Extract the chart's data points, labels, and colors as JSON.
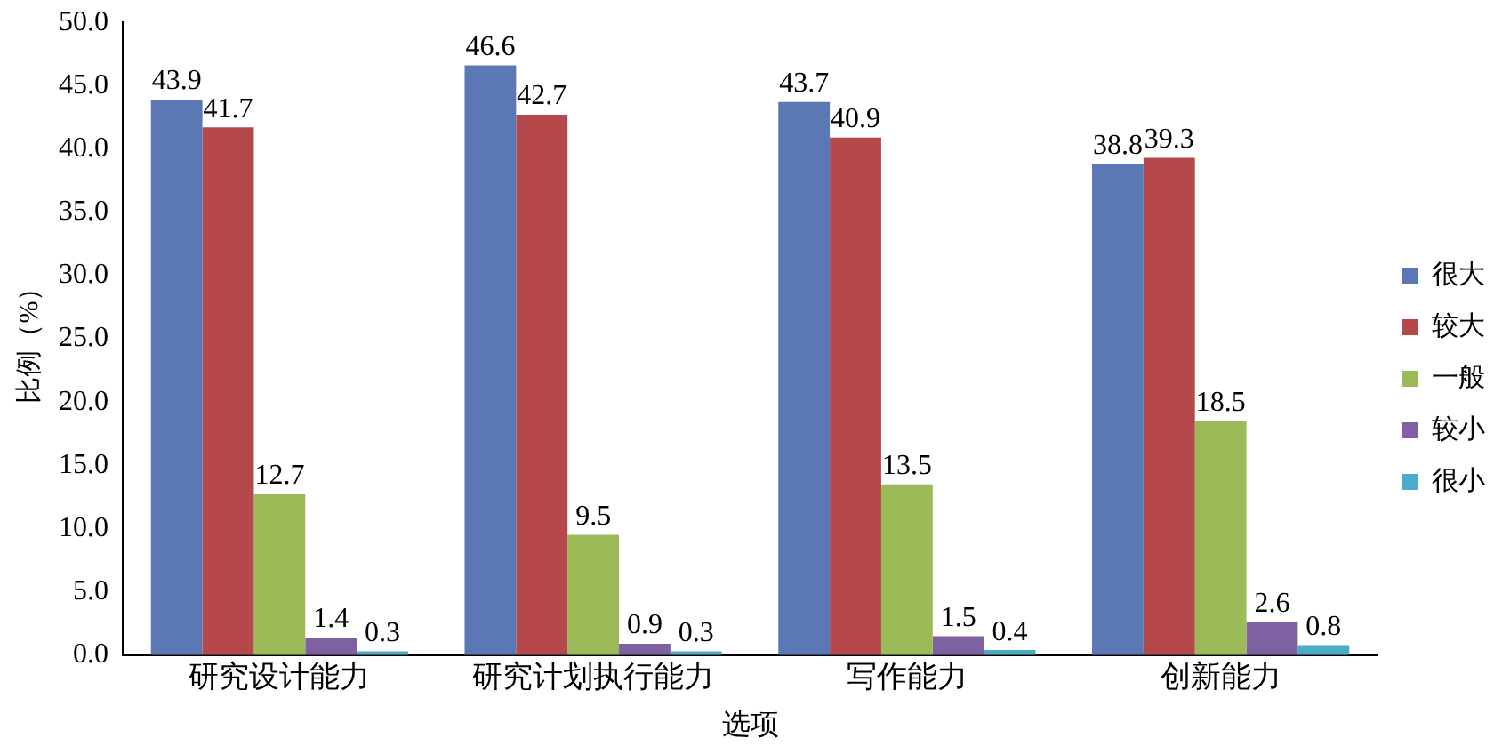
{
  "chart_data": {
    "type": "bar",
    "xlabel": "选项",
    "ylabel": "比例（%）",
    "categories": [
      "研究设计能力",
      "研究计划执行能力",
      "写作能力",
      "创新能力"
    ],
    "series": [
      {
        "name": "很大",
        "color": "#5b78b4",
        "values": [
          43.9,
          46.6,
          43.7,
          38.8
        ]
      },
      {
        "name": "较大",
        "color": "#b5484a",
        "values": [
          41.7,
          42.7,
          40.9,
          39.3
        ]
      },
      {
        "name": "一般",
        "color": "#9bbb59",
        "values": [
          12.7,
          9.5,
          13.5,
          18.5
        ]
      },
      {
        "name": "较小",
        "color": "#7d61a0",
        "values": [
          1.4,
          0.9,
          1.5,
          2.6
        ]
      },
      {
        "name": "很小",
        "color": "#4bacc6",
        "values": [
          0.3,
          0.3,
          0.4,
          0.8
        ]
      }
    ],
    "ylim": [
      0,
      50
    ],
    "yticks": [
      {
        "value": 0,
        "label": "0.0"
      },
      {
        "value": 5,
        "label": "5.0"
      },
      {
        "value": 10,
        "label": "10.0"
      },
      {
        "value": 15,
        "label": "15.0"
      },
      {
        "value": 20,
        "label": "20.0"
      },
      {
        "value": 25,
        "label": "25.0"
      },
      {
        "value": 30,
        "label": "30.0"
      },
      {
        "value": 35,
        "label": "35.0"
      },
      {
        "value": 40,
        "label": "40.0"
      },
      {
        "value": 45,
        "label": "45.0"
      },
      {
        "value": 50,
        "label": "50.0"
      }
    ],
    "grid": false,
    "legend": "right",
    "data_labels": true
  }
}
